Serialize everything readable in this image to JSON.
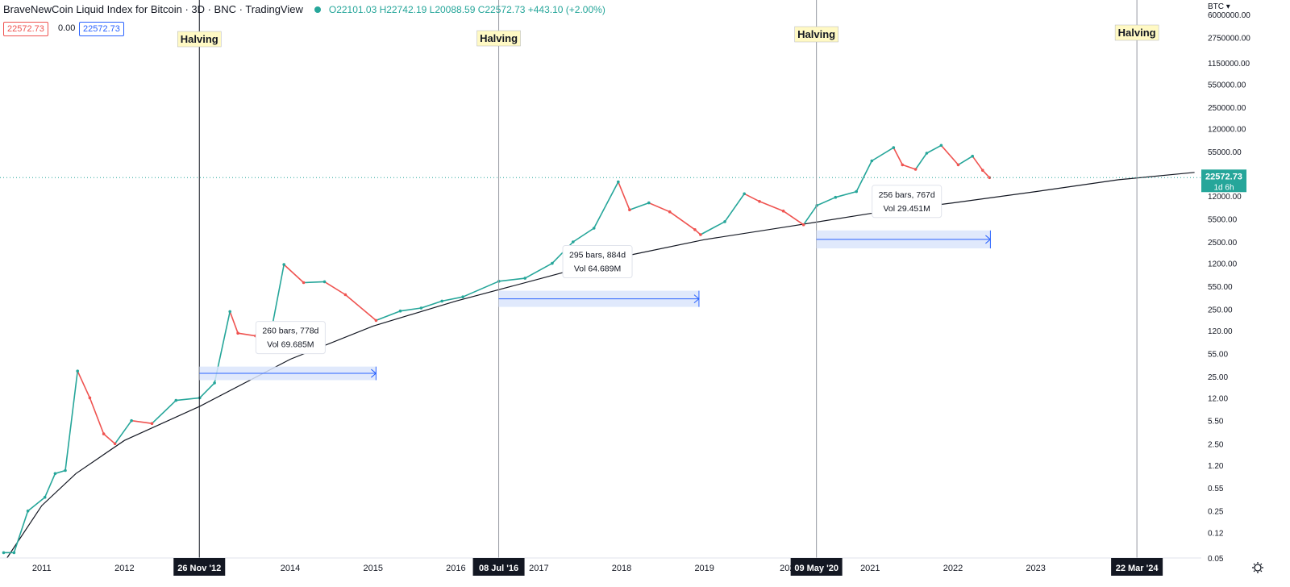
{
  "header": {
    "title": "BraveNewCoin Liquid Index for Bitcoin · 3D · BNC · TradingView",
    "ohlc": "O22101.03 H22742.19 L20088.59 C22572.73 +443.10 (+2.00%)",
    "price_red": "22572.73",
    "price_zero": "0.00",
    "price_blue": "22572.73"
  },
  "colors": {
    "up": "#26a69a",
    "down": "#ef5350",
    "range_fill": "#dbe5fb",
    "range_arrow": "#2962ff",
    "halving_label_bg": "#fff9c4",
    "current_price": "#26a69a"
  },
  "chart_data": {
    "type": "line",
    "title": "BraveNewCoin Liquid Index for Bitcoin",
    "y_scale": "log",
    "y_axis_unit": "BTC",
    "y_ticks": [
      "6000000.00",
      "2750000.00",
      "1150000.00",
      "550000.00",
      "250000.00",
      "120000.00",
      "55000.00",
      "12000.00",
      "5500.00",
      "2500.00",
      "1200.00",
      "550.00",
      "250.00",
      "120.00",
      "55.00",
      "25.00",
      "12.00",
      "5.50",
      "2.50",
      "1.20",
      "0.55",
      "0.25",
      "0.12",
      "0.05"
    ],
    "x_ticks": [
      "2011",
      "2012",
      "2014",
      "2015",
      "2016",
      "2017",
      "2018",
      "2019",
      "202",
      "2021",
      "2022",
      "2023",
      "2"
    ],
    "x_range": [
      "2010-07-01",
      "2024-12-31"
    ],
    "ylim": [
      0.05,
      6000000
    ],
    "grid": false,
    "price_series": {
      "name": "BTC",
      "x": [
        "2010-07-17",
        "2010-09-01",
        "2010-11-01",
        "2011-01-15",
        "2011-03-01",
        "2011-04-15",
        "2011-06-08",
        "2011-08-01",
        "2011-10-01",
        "2011-11-20",
        "2012-02-01",
        "2012-05-01",
        "2012-08-15",
        "2012-11-28",
        "2013-02-01",
        "2013-04-10",
        "2013-05-15",
        "2013-08-01",
        "2013-10-15",
        "2013-12-04",
        "2014-03-01",
        "2014-06-01",
        "2014-09-01",
        "2015-01-14",
        "2015-05-01",
        "2015-08-01",
        "2015-11-01",
        "2016-02-01",
        "2016-07-09",
        "2016-11-01",
        "2017-03-01",
        "2017-06-01",
        "2017-09-01",
        "2017-12-17",
        "2018-02-05",
        "2018-05-01",
        "2018-08-01",
        "2018-11-20",
        "2018-12-15",
        "2019-04-01",
        "2019-06-26",
        "2019-09-01",
        "2019-12-15",
        "2020-03-13",
        "2020-05-11",
        "2020-08-01",
        "2020-11-01",
        "2021-01-08",
        "2021-04-14",
        "2021-05-23",
        "2021-07-20",
        "2021-09-07",
        "2021-11-10",
        "2022-01-24",
        "2022-03-28",
        "2022-05-12",
        "2022-06-11"
      ],
      "values": [
        0.06,
        0.06,
        0.25,
        0.4,
        0.9,
        1.0,
        30.0,
        12.0,
        3.5,
        2.5,
        5.5,
        5.0,
        11.0,
        12.0,
        20.0,
        230.0,
        110.0,
        100.0,
        150.0,
        1150.0,
        620.0,
        640.0,
        410.0,
        170.0,
        235.0,
        260.0,
        330.0,
        380.0,
        650.0,
        720.0,
        1200.0,
        2500.0,
        4000.0,
        19500.0,
        7500.0,
        9500.0,
        7000.0,
        3800.0,
        3200.0,
        5000.0,
        13000.0,
        10000.0,
        7200.0,
        4500.0,
        8700.0,
        11500.0,
        14000.0,
        40000.0,
        63000.0,
        35000.0,
        30000.0,
        52000.0,
        68000.0,
        35000.0,
        47000.0,
        29000.0,
        22572.73
      ]
    },
    "trend_curve": {
      "name": "",
      "x": [
        "2010-08-01",
        "2011-01-01",
        "2011-06-01",
        "2012-01-01",
        "2012-11-28",
        "2014-01-01",
        "2015-01-01",
        "2016-01-01",
        "2017-01-01",
        "2018-01-01",
        "2019-01-01",
        "2020-01-01",
        "2021-01-01",
        "2022-01-01",
        "2023-01-01",
        "2024-01-01",
        "2024-12-01"
      ],
      "values": [
        0.05,
        0.3,
        0.9,
        2.8,
        9,
        45,
        140,
        330,
        700,
        1500,
        2700,
        4200,
        6600,
        9500,
        14000,
        21000,
        27000
      ]
    },
    "halvings": [
      {
        "date": "2012-11-26",
        "label": "Halving",
        "date_label": "26 Nov '12"
      },
      {
        "date": "2016-07-08",
        "label": "Halving",
        "date_label": "08 Jul '16"
      },
      {
        "date": "2020-05-09",
        "label": "Halving",
        "date_label": "09 May '20"
      },
      {
        "date": "2024-03-22",
        "label": "Halving",
        "date_label": "22 Mar '24"
      }
    ],
    "ranges": [
      {
        "start": "2012-11-26",
        "end": "2015-01-14",
        "y_low": 22,
        "y_high": 35,
        "line1": "260 bars, 778d",
        "line2": "Vol 69.685M"
      },
      {
        "start": "2016-07-08",
        "end": "2018-12-08",
        "y_low": 270,
        "y_high": 470,
        "line1": "295 bars, 884d",
        "line2": "Vol 64.689M"
      },
      {
        "start": "2020-05-09",
        "end": "2022-06-15",
        "y_low": 2000,
        "y_high": 3700,
        "line1": "256 bars, 767d",
        "line2": "Vol 29.451M"
      }
    ],
    "current_price": {
      "value": 22572.73,
      "label": "22572.73",
      "sub_label": "1d 6h"
    }
  }
}
